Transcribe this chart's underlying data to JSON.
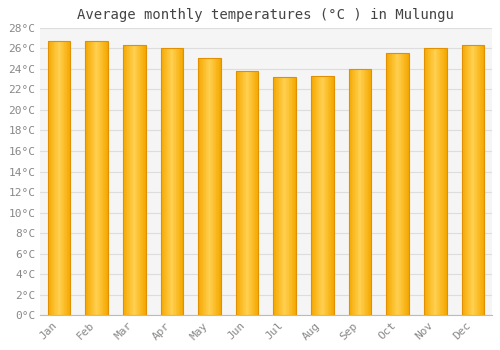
{
  "title": "Average monthly temperatures (°C ) in Mulungu",
  "months": [
    "Jan",
    "Feb",
    "Mar",
    "Apr",
    "May",
    "Jun",
    "Jul",
    "Aug",
    "Sep",
    "Oct",
    "Nov",
    "Dec"
  ],
  "values": [
    26.7,
    26.7,
    26.3,
    26.0,
    25.0,
    23.8,
    23.2,
    23.3,
    24.0,
    25.5,
    26.0,
    26.3
  ],
  "bar_color_center": "#FFD050",
  "bar_color_edge": "#F5A800",
  "bar_edge_color": "#E09000",
  "background_color": "#FFFFFF",
  "plot_bg_color": "#F5F5F5",
  "grid_color": "#DDDDDD",
  "ylim": [
    0,
    28
  ],
  "ytick_step": 2,
  "title_fontsize": 10,
  "tick_fontsize": 8,
  "font_family": "monospace",
  "title_color": "#444444",
  "tick_color": "#888888"
}
